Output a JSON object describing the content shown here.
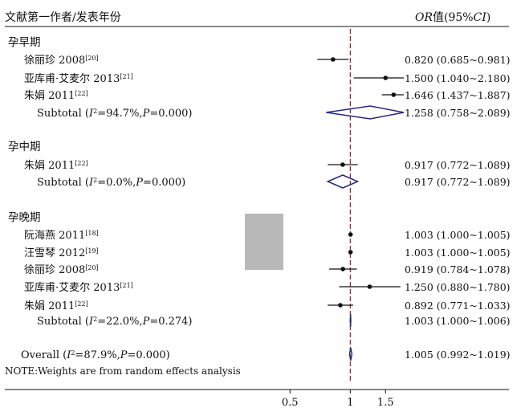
{
  "chart_data": {
    "type": "forest",
    "header": {
      "left": "文献第一作者/发表年份",
      "right_italic": "OR",
      "right_plain": "值(95%",
      "right_ci": "CI",
      "right_close": ")"
    },
    "x_axis": {
      "ticks": [
        0.5,
        1,
        1.5
      ],
      "range": [
        0.2,
        1.85
      ],
      "null_line": 1.0
    },
    "subgroups": [
      {
        "title": "孕早期",
        "studies": [
          {
            "author": "徐丽珍",
            "year": "2008",
            "ref": "[20]",
            "or": 0.82,
            "lo": 0.685,
            "hi": 0.981,
            "text": "0.820 (0.685~0.981)"
          },
          {
            "author": "亚库甫·艾麦尔",
            "year": "2013",
            "ref": "[21]",
            "or": 1.5,
            "lo": 1.04,
            "hi": 2.18,
            "text": "1.500 (1.040~2.180)"
          },
          {
            "author": "朱娟",
            "year": "2011",
            "ref": "[22]",
            "or": 1.646,
            "lo": 1.437,
            "hi": 1.887,
            "text": "1.646 (1.437~1.887)"
          }
        ],
        "subtotal": {
          "label_pre": "Subtotal (",
          "i2_label": "I",
          "i2_rest": "=94.7%,",
          "p_label": "P",
          "p_rest": "=0.000)",
          "or": 1.258,
          "lo": 0.758,
          "hi": 2.089,
          "text": "1.258 (0.758~2.089)"
        }
      },
      {
        "title": "孕中期",
        "studies": [
          {
            "author": "朱娟",
            "year": "2011",
            "ref": "[22]",
            "or": 0.917,
            "lo": 0.772,
            "hi": 1.089,
            "text": "0.917 (0.772~1.089)"
          }
        ],
        "subtotal": {
          "label_pre": "Subtotal (",
          "i2_label": "I",
          "i2_rest": "=0.0%,",
          "p_label": "P",
          "p_rest": "=0.000)",
          "or": 0.917,
          "lo": 0.772,
          "hi": 1.089,
          "text": "0.917 (0.772~1.089)"
        }
      },
      {
        "title": "孕晚期",
        "studies": [
          {
            "author": "阮海燕",
            "year": "2011",
            "ref": "[18]",
            "or": 1.003,
            "lo": 1.0,
            "hi": 1.005,
            "text": "1.003 (1.000~1.005)"
          },
          {
            "author": "汪雪琴",
            "year": "2012",
            "ref": "[19]",
            "or": 1.003,
            "lo": 1.0,
            "hi": 1.005,
            "text": "1.003 (1.000~1.005)"
          },
          {
            "author": "徐丽珍",
            "year": "2008",
            "ref": "[20]",
            "or": 0.919,
            "lo": 0.784,
            "hi": 1.078,
            "text": "0.919 (0.784~1.078)"
          },
          {
            "author": "亚库甫·艾麦尔",
            "year": "2013",
            "ref": "[21]",
            "or": 1.25,
            "lo": 0.88,
            "hi": 1.78,
            "text": "1.250 (0.880~1.780)"
          },
          {
            "author": "朱娟",
            "year": "2011",
            "ref": "[22]",
            "or": 0.892,
            "lo": 0.771,
            "hi": 1.033,
            "text": "0.892 (0.771~1.033)"
          }
        ],
        "subtotal": {
          "label_pre": "Subtotal (",
          "i2_label": "I",
          "i2_rest": "=22.0%,",
          "p_label": "P",
          "p_rest": "=0.274)",
          "or": 1.003,
          "lo": 1.0,
          "hi": 1.006,
          "text": "1.003 (1.000~1.006)"
        }
      }
    ],
    "overall": {
      "label_pre": "Overall (",
      "i2_label": "I",
      "i2_rest": "=87.9%,",
      "p_label": "P",
      "p_rest": "=0.000)",
      "or": 1.005,
      "lo": 0.992,
      "hi": 1.019,
      "text": "1.005 (0.992~1.019)"
    },
    "note": "NOTE:Weights are from random effects analysis",
    "colors": {
      "diamond": "#2a2a7a",
      "null_line": "#8b2030",
      "weight_box": "#b8b8b8",
      "ink": "#111111"
    }
  }
}
